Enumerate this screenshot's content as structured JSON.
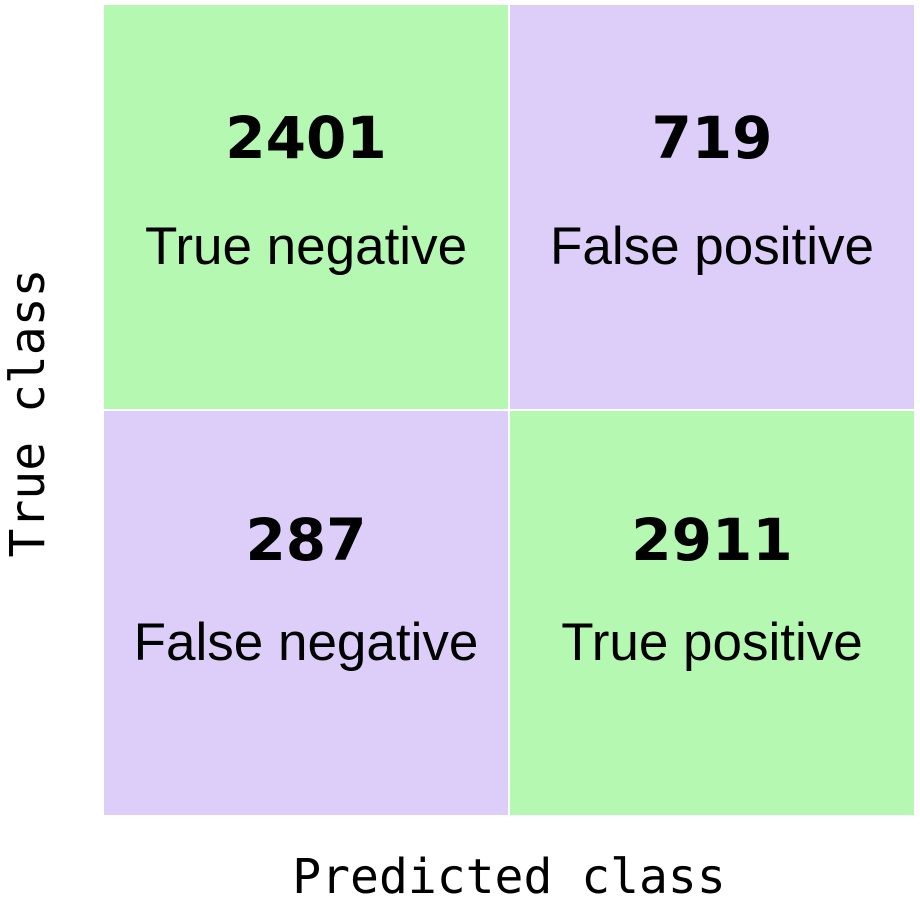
{
  "chart_data": {
    "type": "heatmap",
    "xlabel": "Predicted class",
    "ylabel": "True class",
    "cells": [
      {
        "row": 0,
        "col": 0,
        "value": 2401,
        "label": "True negative",
        "color": "#b4f8b2"
      },
      {
        "row": 0,
        "col": 1,
        "value": 719,
        "label": "False positive",
        "color": "#dccef9"
      },
      {
        "row": 1,
        "col": 0,
        "value": 287,
        "label": "False negative",
        "color": "#dccef9"
      },
      {
        "row": 1,
        "col": 1,
        "value": 2911,
        "label": "True positive",
        "color": "#b4f8b2"
      }
    ]
  }
}
